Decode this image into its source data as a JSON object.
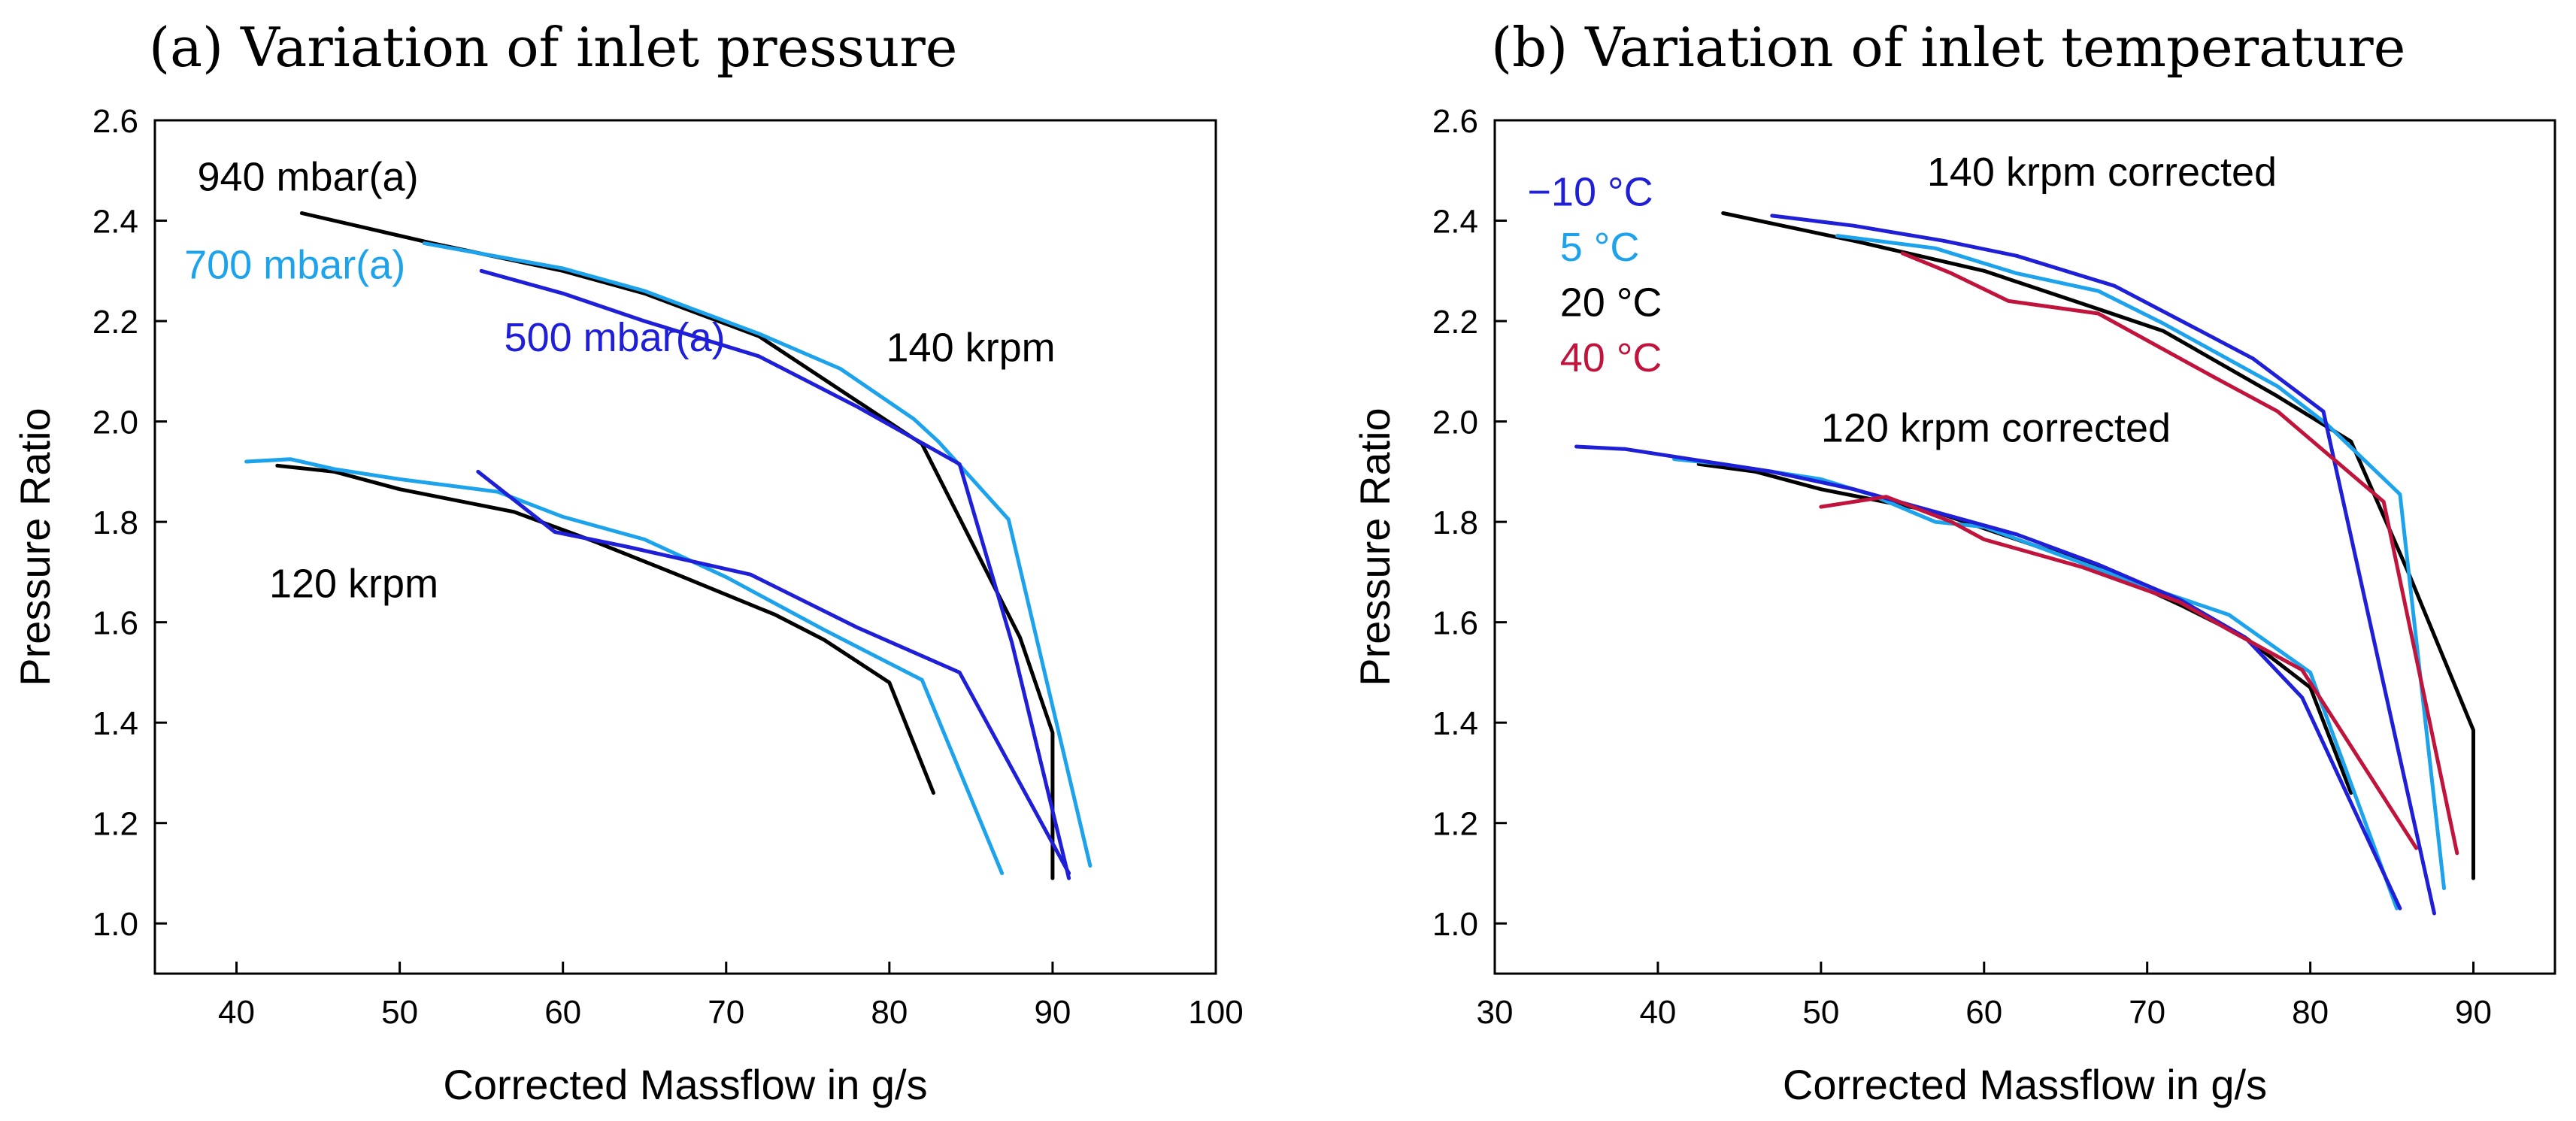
{
  "chart_data": [
    {
      "type": "line",
      "title": "(a) Variation of inlet pressure",
      "xlabel": "Corrected Massflow in g/s",
      "ylabel": "Pressure Ratio",
      "xlim": [
        35,
        100
      ],
      "ylim": [
        0.9,
        2.6
      ],
      "xticks": [
        40,
        50,
        60,
        70,
        80,
        90,
        100
      ],
      "yticks": [
        1.0,
        1.2,
        1.4,
        1.6,
        1.8,
        2.0,
        2.2,
        2.4,
        2.6
      ],
      "tick_labels_x": [
        "40",
        "50",
        "60",
        "70",
        "80",
        "90",
        "100"
      ],
      "tick_labels_y": [
        "1.0",
        "1.2",
        "1.4",
        "1.6",
        "1.8",
        "2.0",
        "2.2",
        "2.4",
        "2.6"
      ],
      "annotations": [
        {
          "text": "940 mbar(a)",
          "x": 37.6,
          "y": 2.46,
          "color": "#000000"
        },
        {
          "text": "700 mbar(a)",
          "x": 36.8,
          "y": 2.285,
          "color": "#1ca3ec"
        },
        {
          "text": "500 mbar(a)",
          "x": 56.4,
          "y": 2.14,
          "color": "#1f1fd8"
        },
        {
          "text": "140 krpm",
          "x": 79.8,
          "y": 2.12,
          "color": "#000000"
        },
        {
          "text": "120 krpm",
          "x": 42.0,
          "y": 1.65,
          "color": "#000000"
        }
      ],
      "series": [
        {
          "name": "940 mbar(a) 140 krpm",
          "color": "#000000",
          "x": [
            44,
            52,
            60,
            65,
            72,
            82,
            88,
            90,
            90
          ],
          "y": [
            2.415,
            2.355,
            2.3,
            2.255,
            2.17,
            1.955,
            1.57,
            1.38,
            1.09
          ]
        },
        {
          "name": "940 mbar(a) 120 krpm",
          "color": "#000000",
          "x": [
            42.5,
            46,
            50,
            57,
            62,
            67,
            73,
            76,
            80,
            82.7
          ],
          "y": [
            1.912,
            1.9,
            1.865,
            1.82,
            1.76,
            1.695,
            1.615,
            1.565,
            1.48,
            1.26
          ]
        },
        {
          "name": "700 mbar(a) 140 krpm",
          "color": "#1ca3ec",
          "x": [
            51.5,
            60,
            65,
            72,
            77,
            81.5,
            83,
            87.3,
            92.3
          ],
          "y": [
            2.355,
            2.305,
            2.26,
            2.175,
            2.105,
            2.005,
            1.96,
            1.805,
            1.115
          ]
        },
        {
          "name": "700 mbar(a) 120 krpm",
          "color": "#1ca3ec",
          "x": [
            40.6,
            43.3,
            46,
            50,
            56,
            60,
            65,
            70,
            76,
            82,
            86.9
          ],
          "y": [
            1.92,
            1.925,
            1.905,
            1.885,
            1.86,
            1.81,
            1.765,
            1.69,
            1.585,
            1.485,
            1.1
          ]
        },
        {
          "name": "500 mbar(a) 140 krpm",
          "color": "#1f1fd8",
          "x": [
            55,
            60,
            65,
            72,
            78,
            84.3,
            87.5,
            91
          ],
          "y": [
            2.3,
            2.255,
            2.2,
            2.13,
            2.03,
            1.915,
            1.56,
            1.09
          ]
        },
        {
          "name": "500 mbar(a) 120 krpm",
          "color": "#1f1fd8",
          "x": [
            54.8,
            59.5,
            64,
            71.5,
            78,
            84.3,
            91
          ],
          "y": [
            1.9,
            1.78,
            1.75,
            1.695,
            1.59,
            1.5,
            1.1
          ]
        }
      ]
    },
    {
      "type": "line",
      "title": "(b) Variation of inlet temperature",
      "xlabel": "Corrected Massflow in g/s",
      "ylabel": "Pressure Ratio",
      "xlim": [
        30,
        95
      ],
      "ylim": [
        0.9,
        2.6
      ],
      "xticks": [
        30,
        40,
        50,
        60,
        70,
        80,
        90
      ],
      "yticks": [
        1.0,
        1.2,
        1.4,
        1.6,
        1.8,
        2.0,
        2.2,
        2.4,
        2.6
      ],
      "tick_labels_x": [
        "30",
        "40",
        "50",
        "60",
        "70",
        "80",
        "90"
      ],
      "tick_labels_y": [
        "1.0",
        "1.2",
        "1.4",
        "1.6",
        "1.8",
        "2.0",
        "2.2",
        "2.4",
        "2.6"
      ],
      "annotations": [
        {
          "text": "140 krpm corrected",
          "x": 56.5,
          "y": 2.47,
          "color": "#000000"
        },
        {
          "text": "120 krpm corrected",
          "x": 50.0,
          "y": 1.96,
          "color": "#000000"
        },
        {
          "text": "−10 °C",
          "x": 32.0,
          "y": 2.43,
          "color": "#1f1fd8"
        },
        {
          "text": "5 °C",
          "x": 34.0,
          "y": 2.32,
          "color": "#1ca3ec"
        },
        {
          "text": "20 °C",
          "x": 34.0,
          "y": 2.21,
          "color": "#000000"
        },
        {
          "text": "40 °C",
          "x": 34.0,
          "y": 2.1,
          "color": "#c0143c"
        }
      ],
      "series": [
        {
          "name": "20 °C 140 krpm",
          "color": "#000000",
          "x": [
            44,
            52,
            60,
            66,
            71,
            78,
            82.5,
            86,
            90,
            90
          ],
          "y": [
            2.415,
            2.36,
            2.3,
            2.235,
            2.18,
            2.05,
            1.96,
            1.7,
            1.385,
            1.09
          ]
        },
        {
          "name": "20 °C 120 krpm",
          "color": "#000000",
          "x": [
            42.5,
            46,
            50,
            57,
            62,
            67,
            72,
            76,
            80,
            82.5
          ],
          "y": [
            1.915,
            1.9,
            1.865,
            1.82,
            1.765,
            1.71,
            1.635,
            1.57,
            1.47,
            1.26
          ]
        },
        {
          "name": "5 °C 140 krpm",
          "color": "#1ca3ec",
          "x": [
            51,
            57,
            62,
            67,
            71,
            78,
            81,
            85.5,
            88.2
          ],
          "y": [
            2.37,
            2.345,
            2.295,
            2.26,
            2.195,
            2.07,
            1.995,
            1.855,
            1.07
          ]
        },
        {
          "name": "5 °C 120 krpm",
          "color": "#1ca3ec",
          "x": [
            41,
            44,
            47,
            50,
            53,
            57,
            60,
            65,
            70,
            75,
            80,
            85.3
          ],
          "y": [
            1.925,
            1.915,
            1.9,
            1.885,
            1.855,
            1.8,
            1.79,
            1.73,
            1.67,
            1.615,
            1.5,
            1.03
          ]
        },
        {
          "name": "−10 °C 140 krpm",
          "color": "#1f1fd8",
          "x": [
            47,
            52,
            57.5,
            62,
            68,
            73,
            76.5,
            80.8,
            87.6
          ],
          "y": [
            2.41,
            2.39,
            2.36,
            2.33,
            2.27,
            2.185,
            2.125,
            2.02,
            1.02
          ]
        },
        {
          "name": "−10 °C 120 krpm",
          "color": "#1f1fd8",
          "x": [
            35,
            38,
            42,
            47,
            52,
            57,
            62,
            67,
            72,
            76,
            79.5,
            85.5
          ],
          "y": [
            1.95,
            1.945,
            1.925,
            1.9,
            1.865,
            1.82,
            1.775,
            1.715,
            1.645,
            1.57,
            1.45,
            1.03
          ]
        },
        {
          "name": "40 °C 140 krpm",
          "color": "#c0143c",
          "x": [
            55,
            58,
            61.5,
            67,
            74,
            78,
            84.5,
            89
          ],
          "y": [
            2.335,
            2.295,
            2.24,
            2.215,
            2.09,
            2.02,
            1.84,
            1.14
          ]
        },
        {
          "name": "40 °C 120 krpm",
          "color": "#c0143c",
          "x": [
            50,
            54,
            58,
            60,
            66,
            72,
            75,
            79.5,
            86.5
          ],
          "y": [
            1.83,
            1.85,
            1.8,
            1.765,
            1.71,
            1.64,
            1.585,
            1.505,
            1.15
          ]
        }
      ]
    }
  ]
}
